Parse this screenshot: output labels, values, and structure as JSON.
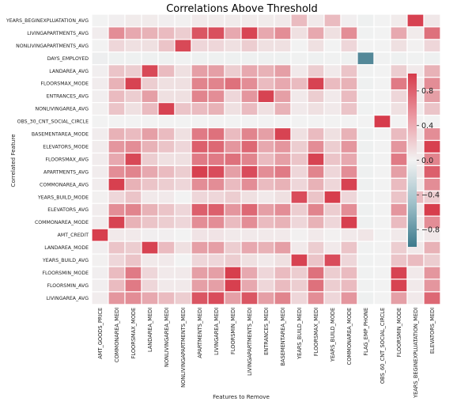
{
  "chart_data": {
    "type": "heatmap",
    "title": "Correlations Above Threshold",
    "xlabel": "Features to Remove",
    "ylabel": "Correlated Feature",
    "x_categories": [
      "AMT_GOODS_PRICE",
      "COMMONAREA_MEDI",
      "FLOORSMAX_MODE",
      "LANDAREA_MEDI",
      "NONLIVINGAREA_MEDI",
      "NONLIVINGAPARTMENTS_MEDI",
      "APARTMENTS_MEDI",
      "LIVINGAREA_MEDI",
      "FLOORSMIN_MEDI",
      "LIVINGAPARTMENTS_MEDI",
      "ENTRANCES_MEDI",
      "BASEMENTAREA_MEDI",
      "YEARS_BUILD_MEDI",
      "FLOORSMAX_MEDI",
      "YEARS_BUILD_MODE",
      "COMMONAREA_MODE",
      "FLAG_EMP_PHONE",
      "OBS_60_CNT_SOCIAL_CIRCLE",
      "FLOORSMIN_MODE",
      "YEARS_BEGINEXPLUATATION_MEDI",
      "ELEVATORS_MEDI"
    ],
    "y_categories": [
      "YEARS_BEGINEXPLUATATION_AVG",
      "LIVINGAPARTMENTS_AVG",
      "NONLIVINGAPARTMENTS_AVG",
      "DAYS_EMPLOYED",
      "LANDAREA_AVG",
      "FLOORSMAX_MODE",
      "ENTRANCES_AVG",
      "NONLIVINGAREA_AVG",
      "OBS_30_CNT_SOCIAL_CIRCLE",
      "BASEMENTAREA_MODE",
      "ELEVATORS_MODE",
      "FLOORSMAX_AVG",
      "APARTMENTS_AVG",
      "COMMONAREA_AVG",
      "YEARS_BUILD_MODE",
      "ELEVATORS_AVG",
      "COMMONAREA_MODE",
      "AMT_CREDIT",
      "LANDAREA_MODE",
      "YEARS_BUILD_AVG",
      "FLOORSMIN_MODE",
      "FLOORSMIN_AVG",
      "LIVINGAREA_AVG"
    ],
    "values": [
      [
        0.0,
        0.02,
        0.04,
        0.04,
        0.02,
        0.01,
        0.05,
        0.04,
        0.04,
        0.04,
        0.04,
        0.05,
        0.3,
        0.05,
        0.3,
        0.02,
        -0.02,
        0.0,
        0.04,
        0.96,
        0.06
      ],
      [
        0.03,
        0.55,
        0.4,
        0.35,
        0.3,
        0.2,
        0.85,
        0.88,
        0.4,
        0.94,
        0.4,
        0.55,
        0.1,
        0.4,
        0.1,
        0.55,
        -0.01,
        0.0,
        0.4,
        0.04,
        0.7
      ],
      [
        0.0,
        0.15,
        0.1,
        0.1,
        0.25,
        0.92,
        0.15,
        0.15,
        0.1,
        0.2,
        0.1,
        0.1,
        0.0,
        0.1,
        0.0,
        0.15,
        0.0,
        0.0,
        0.1,
        0.01,
        0.15
      ],
      [
        -0.03,
        -0.02,
        -0.02,
        -0.02,
        -0.02,
        -0.01,
        -0.02,
        -0.02,
        -0.02,
        -0.02,
        -0.02,
        -0.02,
        -0.01,
        -0.02,
        -0.01,
        -0.02,
        -0.88,
        -0.01,
        -0.02,
        -0.01,
        -0.02
      ],
      [
        0.02,
        0.25,
        0.2,
        0.92,
        0.3,
        0.1,
        0.45,
        0.45,
        0.2,
        0.4,
        0.35,
        0.45,
        0.05,
        0.2,
        0.05,
        0.25,
        -0.01,
        0.0,
        0.2,
        0.05,
        0.35
      ],
      [
        0.03,
        0.35,
        0.95,
        0.2,
        0.1,
        0.1,
        0.6,
        0.6,
        0.7,
        0.55,
        0.3,
        0.4,
        0.3,
        0.95,
        0.3,
        0.35,
        -0.02,
        0.0,
        0.65,
        0.05,
        0.55
      ],
      [
        0.02,
        0.3,
        0.2,
        0.45,
        0.1,
        0.1,
        0.6,
        0.55,
        0.15,
        0.5,
        0.95,
        0.45,
        0.05,
        0.2,
        0.05,
        0.3,
        -0.01,
        0.0,
        0.15,
        0.04,
        0.45
      ],
      [
        0.01,
        0.25,
        0.1,
        0.3,
        0.95,
        0.25,
        0.3,
        0.35,
        0.1,
        0.3,
        0.1,
        0.35,
        0.05,
        0.1,
        0.05,
        0.25,
        -0.01,
        0.0,
        0.1,
        0.03,
        0.25
      ],
      [
        0.0,
        0.0,
        0.0,
        0.0,
        0.0,
        0.0,
        0.0,
        0.0,
        0.0,
        0.0,
        0.0,
        0.0,
        0.0,
        0.0,
        0.0,
        0.0,
        0.0,
        0.99,
        0.0,
        0.0,
        0.0
      ],
      [
        0.03,
        0.35,
        0.3,
        0.45,
        0.3,
        0.1,
        0.65,
        0.7,
        0.3,
        0.6,
        0.45,
        0.95,
        0.1,
        0.3,
        0.1,
        0.35,
        -0.02,
        0.0,
        0.3,
        0.05,
        0.55
      ],
      [
        0.03,
        0.5,
        0.55,
        0.35,
        0.25,
        0.15,
        0.8,
        0.75,
        0.5,
        0.75,
        0.4,
        0.5,
        0.2,
        0.55,
        0.2,
        0.5,
        -0.02,
        0.0,
        0.5,
        0.05,
        0.97
      ],
      [
        0.03,
        0.4,
        0.92,
        0.2,
        0.1,
        0.1,
        0.65,
        0.65,
        0.7,
        0.6,
        0.3,
        0.45,
        0.25,
        0.95,
        0.25,
        0.4,
        -0.02,
        0.0,
        0.65,
        0.05,
        0.6
      ],
      [
        0.03,
        0.55,
        0.6,
        0.4,
        0.3,
        0.2,
        0.97,
        0.9,
        0.45,
        0.9,
        0.55,
        0.65,
        0.15,
        0.6,
        0.15,
        0.55,
        -0.02,
        0.0,
        0.45,
        0.05,
        0.8
      ],
      [
        0.03,
        0.97,
        0.35,
        0.25,
        0.2,
        0.15,
        0.55,
        0.55,
        0.3,
        0.55,
        0.3,
        0.35,
        0.15,
        0.35,
        0.15,
        0.95,
        -0.02,
        0.0,
        0.3,
        0.04,
        0.55
      ],
      [
        0.01,
        0.15,
        0.25,
        0.05,
        0.05,
        0.0,
        0.15,
        0.15,
        0.2,
        0.1,
        0.05,
        0.1,
        0.9,
        0.25,
        0.98,
        0.15,
        -0.01,
        0.0,
        0.25,
        0.3,
        0.2
      ],
      [
        0.03,
        0.55,
        0.6,
        0.35,
        0.25,
        0.15,
        0.8,
        0.8,
        0.5,
        0.75,
        0.45,
        0.55,
        0.2,
        0.6,
        0.2,
        0.55,
        -0.02,
        0.0,
        0.5,
        0.05,
        0.98
      ],
      [
        0.03,
        0.95,
        0.35,
        0.25,
        0.2,
        0.15,
        0.55,
        0.55,
        0.3,
        0.55,
        0.3,
        0.35,
        0.15,
        0.35,
        0.15,
        0.97,
        -0.02,
        0.0,
        0.3,
        0.04,
        0.55
      ],
      [
        0.98,
        0.05,
        0.05,
        0.02,
        0.02,
        0.0,
        0.08,
        0.08,
        0.05,
        0.05,
        0.05,
        0.05,
        0.01,
        0.05,
        0.01,
        0.05,
        0.07,
        0.0,
        0.05,
        0.0,
        0.06
      ],
      [
        0.02,
        0.25,
        0.2,
        0.95,
        0.3,
        0.1,
        0.45,
        0.45,
        0.2,
        0.4,
        0.35,
        0.45,
        0.05,
        0.2,
        0.05,
        0.25,
        -0.01,
        0.0,
        0.2,
        0.05,
        0.35
      ],
      [
        0.01,
        0.15,
        0.25,
        0.05,
        0.05,
        0.0,
        0.15,
        0.15,
        0.2,
        0.1,
        0.05,
        0.1,
        0.95,
        0.25,
        0.9,
        0.15,
        -0.01,
        0.0,
        0.25,
        0.3,
        0.2
      ],
      [
        0.02,
        0.3,
        0.65,
        0.15,
        0.05,
        0.05,
        0.45,
        0.45,
        0.98,
        0.4,
        0.15,
        0.3,
        0.2,
        0.7,
        0.2,
        0.3,
        -0.01,
        0.0,
        0.95,
        0.05,
        0.5
      ],
      [
        0.02,
        0.3,
        0.65,
        0.15,
        0.05,
        0.05,
        0.45,
        0.45,
        0.97,
        0.4,
        0.15,
        0.3,
        0.2,
        0.7,
        0.2,
        0.3,
        -0.01,
        0.0,
        0.95,
        0.05,
        0.5
      ],
      [
        0.03,
        0.5,
        0.55,
        0.4,
        0.3,
        0.2,
        0.85,
        0.9,
        0.45,
        0.85,
        0.45,
        0.6,
        0.15,
        0.55,
        0.15,
        0.5,
        -0.02,
        0.0,
        0.45,
        0.05,
        0.75
      ]
    ],
    "colorbar": {
      "ticks": [
        0.8,
        0.4,
        0.0,
        -0.4,
        -0.8
      ],
      "tick_labels": [
        "0.8",
        "0.4",
        "0.0",
        "−0.4",
        "−0.8"
      ],
      "range": [
        -1.0,
        1.0
      ]
    },
    "colors": {
      "negative": "#3d7a8c",
      "neutral": "#f2f2f2",
      "positive": "#d63a4a",
      "gridline": "#ffffff"
    },
    "grid": false,
    "legend": "right"
  }
}
